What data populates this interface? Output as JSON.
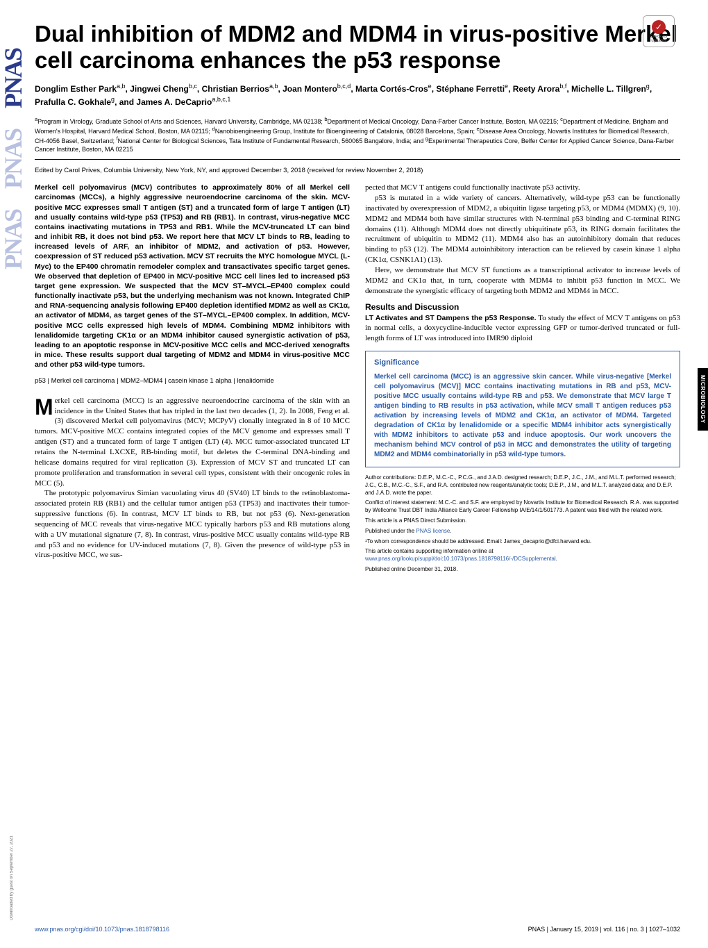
{
  "journal_logo": "PNAS",
  "download_note": "Downloaded by guest on September 27, 2021",
  "check_updates": {
    "top": "Check for",
    "bottom": "updates"
  },
  "side_tab": "MICROBIOLOGY",
  "title": "Dual inhibition of MDM2 and MDM4 in virus-positive Merkel cell carcinoma enhances the p53 response",
  "authors_html": "Donglim Esther Park<sup>a,b</sup>, Jingwei Cheng<sup>b,c</sup>, Christian Berrios<sup>a,b</sup>, Joan Montero<sup>b,c,d</sup>, Marta Cortés-Cros<sup>e</sup>, Stéphane Ferretti<sup>e</sup>, Reety Arora<sup>b,f</sup>, Michelle L. Tillgren<sup>g</sup>, Prafulla C. Gokhale<sup>g</sup>, and James A. DeCaprio<sup>a,b,c,1</sup>",
  "affiliations": "<sup>a</sup>Program in Virology, Graduate School of Arts and Sciences, Harvard University, Cambridge, MA 02138; <sup>b</sup>Department of Medical Oncology, Dana-Farber Cancer Institute, Boston, MA 02215; <sup>c</sup>Department of Medicine, Brigham and Women's Hospital, Harvard Medical School, Boston, MA 02115; <sup>d</sup>Nanobioengineering Group, Institute for Bioengineering of Catalonia, 08028 Barcelona, Spain; <sup>e</sup>Disease Area Oncology, Novartis Institutes for Biomedical Research, CH-4056 Basel, Switzerland; <sup>f</sup>National Center for Biological Sciences, Tata Institute of Fundamental Research, 560065 Bangalore, India; and <sup>g</sup>Experimental Therapeutics Core, Belfer Center for Applied Cancer Science, Dana-Farber Cancer Institute, Boston, MA 02215",
  "edited_by": "Edited by Carol Prives, Columbia University, New York, NY, and approved December 3, 2018 (received for review November 2, 2018)",
  "abstract": "Merkel cell polyomavirus (MCV) contributes to approximately 80% of all Merkel cell carcinomas (MCCs), a highly aggressive neuroendocrine carcinoma of the skin. MCV-positive MCC expresses small T antigen (ST) and a truncated form of large T antigen (LT) and usually contains wild-type p53 (TP53) and RB (RB1). In contrast, virus-negative MCC contains inactivating mutations in TP53 and RB1. While the MCV-truncated LT can bind and inhibit RB, it does not bind p53. We report here that MCV LT binds to RB, leading to increased levels of ARF, an inhibitor of MDM2, and activation of p53. However, coexpression of ST reduced p53 activation. MCV ST recruits the MYC homologue MYCL (L-Myc) to the EP400 chromatin remodeler complex and transactivates specific target genes. We observed that depletion of EP400 in MCV-positive MCC cell lines led to increased p53 target gene expression. We suspected that the MCV ST–MYCL–EP400 complex could functionally inactivate p53, but the underlying mechanism was not known. Integrated ChIP and RNA-sequencing analysis following EP400 depletion identified MDM2 as well as CK1α, an activator of MDM4, as target genes of the ST–MYCL–EP400 complex. In addition, MCV-positive MCC cells expressed high levels of MDM4. Combining MDM2 inhibitors with lenalidomide targeting CK1α or an MDM4 inhibitor caused synergistic activation of p53, leading to an apoptotic response in MCV-positive MCC cells and MCC-derived xenografts in mice. These results support dual targeting of MDM2 and MDM4 in virus-positive MCC and other p53 wild-type tumors.",
  "keywords": "p53 | Merkel cell carcinoma | MDM2–MDM4 | casein kinase 1 alpha | lenalidomide",
  "intro_p1": "erkel cell carcinoma (MCC) is an aggressive neuroendocrine carcinoma of the skin with an incidence in the United States that has tripled in the last two decades (1, 2). In 2008, Feng et al. (3) discovered Merkel cell polyomavirus (MCV; MCPyV) clonally integrated in 8 of 10 MCC tumors. MCV-positive MCC contains integrated copies of the MCV genome and expresses small T antigen (ST) and a truncated form of large T antigen (LT) (4). MCC tumor-associated truncated LT retains the N-terminal LXCXE, RB-binding motif, but deletes the C-terminal DNA-binding and helicase domains required for viral replication (3). Expression of MCV ST and truncated LT can promote proliferation and transformation in several cell types, consistent with their oncogenic roles in MCC (5).",
  "intro_p2": "The prototypic polyomavirus Simian vacuolating virus 40 (SV40) LT binds to the retinoblastoma-associated protein RB (RB1) and the cellular tumor antigen p53 (TP53) and inactivates their tumor-suppressive functions (6). In contrast, MCV LT binds to RB, but not p53 (6). Next-generation sequencing of MCC reveals that virus-negative MCC typically harbors p53 and RB mutations along with a UV mutational signature (7, 8). In contrast, virus-positive MCC usually contains wild-type RB and p53 and no evidence for UV-induced mutations (7, 8). Given the presence of wild-type p53 in virus-positive MCC, we sus-",
  "right_p1": "pected that MCV T antigens could functionally inactivate p53 activity.",
  "right_p2": "p53 is mutated in a wide variety of cancers. Alternatively, wild-type p53 can be functionally inactivated by overexpression of MDM2, a ubiquitin ligase targeting p53, or MDM4 (MDMX) (9, 10). MDM2 and MDM4 both have similar structures with N-terminal p53 binding and C-terminal RING domains (11). Although MDM4 does not directly ubiquitinate p53, its RING domain facilitates the recruitment of ubiquitin to MDM2 (11). MDM4 also has an autoinhibitory domain that reduces binding to p53 (12). The MDM4 autoinhibitory interaction can be relieved by casein kinase 1 alpha (CK1α, CSNK1A1) (13).",
  "right_p3": "Here, we demonstrate that MCV ST functions as a transcriptional activator to increase levels of MDM2 and CK1α that, in turn, cooperate with MDM4 to inhibit p53 function in MCC. We demonstrate the synergistic efficacy of targeting both MDM2 and MDM4 in MCC.",
  "results_head": "Results and Discussion",
  "results_sub": "LT Activates and ST Dampens the p53 Response.",
  "results_body": " To study the effect of MCV T antigens on p53 in normal cells, a doxycycline-inducible vector expressing GFP or tumor-derived truncated or full-length forms of LT was introduced into IMR90 diploid",
  "significance": {
    "heading": "Significance",
    "body": "Merkel cell carcinoma (MCC) is an aggressive skin cancer. While virus-negative [Merkel cell polyomavirus (MCV)] MCC contains inactivating mutations in RB and p53, MCV-positive MCC usually contains wild-type RB and p53. We demonstrate that MCV large T antigen binding to RB results in p53 activation, while MCV small T antigen reduces p53 activation by increasing levels of MDM2 and CK1α, an activator of MDM4. Targeted degradation of CK1α by lenalidomide or a specific MDM4 inhibitor acts synergistically with MDM2 inhibitors to activate p53 and induce apoptosis. Our work uncovers the mechanism behind MCV control of p53 in MCC and demonstrates the utility of targeting MDM2 and MDM4 combinatorially in p53 wild-type tumors."
  },
  "footnotes": {
    "contrib": "Author contributions: D.E.P., M.C.-C., P.C.G., and J.A.D. designed research; D.E.P., J.C., J.M., and M.L.T. performed research; J.C., C.B., M.C.-C., S.F., and R.A. contributed new reagents/analytic tools; D.E.P., J.M., and M.L.T. analyzed data; and D.E.P. and J.A.D. wrote the paper.",
    "coi": "Conflict of interest statement: M.C.-C. and S.F. are employed by Novartis Institute for Biomedical Research. R.A. was supported by Wellcome Trust DBT India Alliance Early Career Fellowship IA/E/14/1/501773. A patent was filed with the related work.",
    "direct": "This article is a PNAS Direct Submission.",
    "license_pre": "Published under the ",
    "license_link": "PNAS license",
    "license_post": ".",
    "corr": "¹To whom correspondence should be addressed. Email: James_decaprio@dfci.harvard.edu.",
    "supp_pre": "This article contains supporting information online at ",
    "supp_link": "www.pnas.org/lookup/suppl/doi:10.1073/pnas.1818798116/-/DCSupplemental",
    "supp_post": ".",
    "pub": "Published online December 31, 2018."
  },
  "footer": {
    "left": "www.pnas.org/cgi/doi/10.1073/pnas.1818798116",
    "right": "PNAS  |  January 15, 2019  |  vol. 116  |  no. 3  |  1027–1032"
  }
}
